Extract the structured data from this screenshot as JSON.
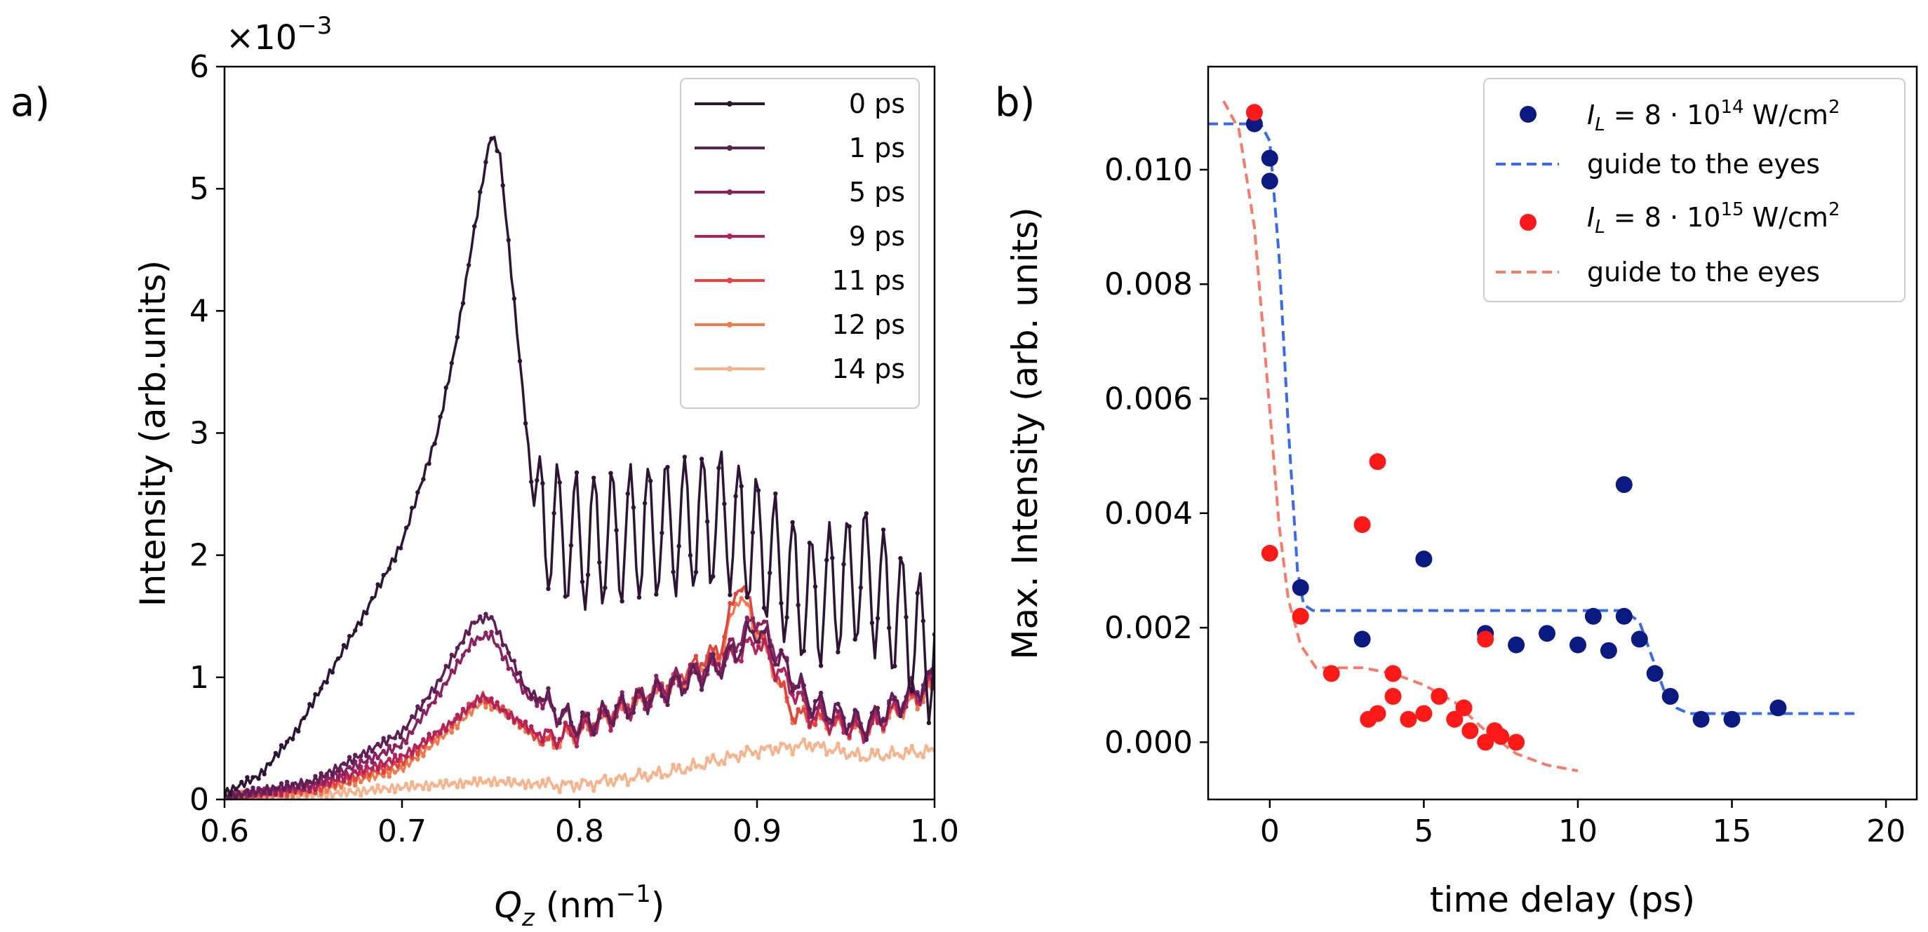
{
  "chart_data": [
    {
      "panel": "a)",
      "type": "line",
      "xlabel_parts": [
        "Q",
        "z",
        " (nm",
        "−1",
        ")"
      ],
      "ylabel": "Intensity (arb.units)",
      "offset_text": "×10−3",
      "offset_base": "×10",
      "offset_exp": "−3",
      "xlim": [
        0.6,
        1.0
      ],
      "ylim": [
        0,
        6
      ],
      "xticks": [
        0.6,
        0.7,
        0.8,
        0.9,
        1.0
      ],
      "xtick_labels": [
        "0.6",
        "0.7",
        "0.8",
        "0.9",
        "1.0"
      ],
      "yticks": [
        0,
        1,
        2,
        3,
        4,
        5,
        6
      ],
      "ytick_labels": [
        "0",
        "1",
        "2",
        "3",
        "4",
        "5",
        "6"
      ],
      "legend_position": "top-right",
      "series": [
        {
          "name": "0 ps",
          "color": "#2e1435",
          "osc_amp": 0.55,
          "osc_start": 0.775,
          "osc_period": 0.0102,
          "x": [
            0.6,
            0.62,
            0.64,
            0.66,
            0.68,
            0.7,
            0.72,
            0.73,
            0.74,
            0.75,
            0.755,
            0.765,
            0.775,
            0.8,
            0.84,
            0.86,
            0.88,
            0.9,
            0.93,
            0.96,
            1.0
          ],
          "y": [
            0.05,
            0.2,
            0.55,
            1.05,
            1.55,
            2.1,
            3.0,
            3.7,
            4.6,
            5.45,
            5.3,
            3.8,
            2.3,
            2.1,
            2.2,
            2.25,
            2.3,
            2.1,
            1.6,
            1.85,
            1.15
          ]
        },
        {
          "name": "1 ps",
          "color": "#5e1f55",
          "osc_amp": 0.1,
          "osc_start": 0.78,
          "osc_period": 0.0102,
          "x": [
            0.6,
            0.65,
            0.7,
            0.72,
            0.74,
            0.75,
            0.77,
            0.8,
            0.85,
            0.88,
            0.9,
            0.93,
            0.96,
            1.0
          ],
          "y": [
            0.02,
            0.15,
            0.55,
            0.95,
            1.45,
            1.5,
            0.9,
            0.6,
            0.9,
            1.1,
            1.4,
            0.8,
            0.6,
            1.0
          ]
        },
        {
          "name": "5 ps",
          "color": "#8a2260",
          "osc_amp": 0.08,
          "osc_start": 0.78,
          "osc_period": 0.0102,
          "x": [
            0.6,
            0.65,
            0.7,
            0.72,
            0.74,
            0.75,
            0.77,
            0.8,
            0.85,
            0.88,
            0.9,
            0.93,
            0.96,
            1.0
          ],
          "y": [
            0.02,
            0.12,
            0.45,
            0.85,
            1.3,
            1.35,
            0.85,
            0.6,
            0.95,
            1.15,
            1.5,
            0.75,
            0.6,
            1.0
          ]
        },
        {
          "name": "9 ps",
          "color": "#b1235a",
          "osc_amp": 0.08,
          "osc_start": 0.78,
          "osc_period": 0.0102,
          "x": [
            0.6,
            0.65,
            0.7,
            0.73,
            0.745,
            0.76,
            0.78,
            0.8,
            0.85,
            0.88,
            0.9,
            0.93,
            0.96,
            1.0
          ],
          "y": [
            0.02,
            0.1,
            0.35,
            0.65,
            0.85,
            0.7,
            0.5,
            0.55,
            0.9,
            1.1,
            1.3,
            0.7,
            0.55,
            0.95
          ]
        },
        {
          "name": "11 ps",
          "color": "#e0453e",
          "osc_amp": 0.06,
          "osc_start": 0.78,
          "osc_period": 0.0102,
          "x": [
            0.6,
            0.65,
            0.7,
            0.73,
            0.745,
            0.76,
            0.78,
            0.8,
            0.85,
            0.88,
            0.89,
            0.92,
            0.96,
            1.0
          ],
          "y": [
            0.02,
            0.08,
            0.3,
            0.65,
            0.85,
            0.7,
            0.45,
            0.6,
            0.95,
            1.25,
            1.8,
            0.7,
            0.55,
            0.95
          ]
        },
        {
          "name": "12 ps",
          "color": "#f07a4f",
          "osc_amp": 0.06,
          "osc_start": 0.78,
          "osc_period": 0.0102,
          "x": [
            0.6,
            0.65,
            0.7,
            0.73,
            0.745,
            0.76,
            0.78,
            0.8,
            0.85,
            0.88,
            0.89,
            0.92,
            0.96,
            1.0
          ],
          "y": [
            0.02,
            0.06,
            0.25,
            0.6,
            0.8,
            0.7,
            0.45,
            0.55,
            0.9,
            1.2,
            1.7,
            0.7,
            0.55,
            0.9
          ]
        },
        {
          "name": "14 ps",
          "color": "#f5b38e",
          "osc_amp": 0.03,
          "osc_start": 0.78,
          "osc_period": 0.0102,
          "x": [
            0.6,
            0.65,
            0.7,
            0.75,
            0.78,
            0.8,
            0.85,
            0.9,
            0.93,
            0.96,
            1.0
          ],
          "y": [
            0.02,
            0.03,
            0.1,
            0.15,
            0.12,
            0.12,
            0.22,
            0.4,
            0.45,
            0.35,
            0.4
          ]
        }
      ]
    },
    {
      "panel": "b)",
      "type": "scatter",
      "xlabel": "time delay (ps)",
      "ylabel": "Max. Intensity (arb. units)",
      "xlim": [
        -2.0,
        21.0
      ],
      "ylim": [
        -0.001,
        0.0118
      ],
      "xticks": [
        0,
        5,
        10,
        15,
        20
      ],
      "xtick_labels": [
        "0",
        "5",
        "10",
        "15",
        "20"
      ],
      "yticks": [
        0.0,
        0.002,
        0.004,
        0.006,
        0.008,
        0.01
      ],
      "ytick_labels": [
        "0.000",
        "0.002",
        "0.004",
        "0.006",
        "0.008",
        "0.010"
      ],
      "legend_position": "top-right",
      "legend": [
        {
          "kind": "marker",
          "color": "#0a1a80",
          "label_parts": [
            "I",
            "L",
            " = 8 · 10",
            "14",
            " W/cm",
            "2"
          ]
        },
        {
          "kind": "dashed",
          "color": "#3a6ae8",
          "label": "guide to the eyes"
        },
        {
          "kind": "marker",
          "color": "#ff1a1a",
          "label_parts": [
            "I",
            "L",
            " = 8 · 10",
            "15",
            " W/cm",
            "2"
          ]
        },
        {
          "kind": "dashed",
          "color": "#f47c6c",
          "label": "guide to the eyes"
        }
      ],
      "series": [
        {
          "name": "I_L = 8·10^14 W/cm^2",
          "color": "#0a1a80",
          "points": [
            [
              -0.5,
              0.0108
            ],
            [
              0.0,
              0.0102
            ],
            [
              0.0,
              0.0098
            ],
            [
              1.0,
              0.0027
            ],
            [
              3.0,
              0.0018
            ],
            [
              5.0,
              0.0032
            ],
            [
              7.0,
              0.0019
            ],
            [
              8.0,
              0.0017
            ],
            [
              9.0,
              0.0019
            ],
            [
              10.0,
              0.0017
            ],
            [
              10.5,
              0.0022
            ],
            [
              11.0,
              0.0016
            ],
            [
              11.5,
              0.0045
            ],
            [
              11.5,
              0.0022
            ],
            [
              12.0,
              0.0018
            ],
            [
              12.5,
              0.0012
            ],
            [
              13.0,
              0.0008
            ],
            [
              14.0,
              0.0004
            ],
            [
              15.0,
              0.0004
            ],
            [
              16.5,
              0.0006
            ]
          ]
        },
        {
          "name": "I_L = 8·10^15 W/cm^2",
          "color": "#ff1a1a",
          "points": [
            [
              -0.5,
              0.011
            ],
            [
              0.0,
              0.0033
            ],
            [
              1.0,
              0.0022
            ],
            [
              2.0,
              0.0012
            ],
            [
              3.0,
              0.0038
            ],
            [
              3.2,
              0.0004
            ],
            [
              3.5,
              0.0005
            ],
            [
              3.5,
              0.0049
            ],
            [
              4.0,
              0.0012
            ],
            [
              4.0,
              0.0008
            ],
            [
              4.5,
              0.0004
            ],
            [
              5.0,
              0.0005
            ],
            [
              5.5,
              0.0008
            ],
            [
              6.0,
              0.0004
            ],
            [
              6.3,
              0.0006
            ],
            [
              6.5,
              0.0002
            ],
            [
              7.0,
              0.0018
            ],
            [
              7.0,
              0.0
            ],
            [
              7.3,
              0.0002
            ],
            [
              7.5,
              0.0001
            ],
            [
              8.0,
              0.0
            ]
          ]
        },
        {
          "name": "guide to the eyes (blue)",
          "style": "dashed",
          "color": "#3a6ae8",
          "x": [
            -2.0,
            -0.3,
            0.0,
            0.3,
            0.6,
            0.9,
            1.1,
            1.4,
            2.0,
            5.0,
            10.0,
            11.5,
            12.0,
            12.4,
            12.8,
            13.2,
            13.6,
            15.0,
            19.0
          ],
          "y": [
            0.0108,
            0.0108,
            0.0105,
            0.0085,
            0.0055,
            0.003,
            0.0024,
            0.0023,
            0.0023,
            0.0023,
            0.0023,
            0.0023,
            0.0021,
            0.0015,
            0.0009,
            0.0006,
            0.0005,
            0.0005,
            0.0005
          ]
        },
        {
          "name": "guide to the eyes (red)",
          "style": "dashed",
          "color": "#f47c6c",
          "x": [
            -1.5,
            -1.0,
            -0.5,
            0.0,
            0.3,
            0.6,
            1.0,
            1.5,
            2.0,
            3.0,
            4.0,
            5.0,
            6.0,
            7.0,
            8.0,
            9.0,
            10.0
          ],
          "y": [
            0.0112,
            0.0107,
            0.009,
            0.0058,
            0.0038,
            0.0025,
            0.0017,
            0.0013,
            0.0013,
            0.0013,
            0.0012,
            0.001,
            0.0007,
            0.0002,
            -0.0002,
            -0.0004,
            -0.0005
          ]
        }
      ]
    }
  ]
}
